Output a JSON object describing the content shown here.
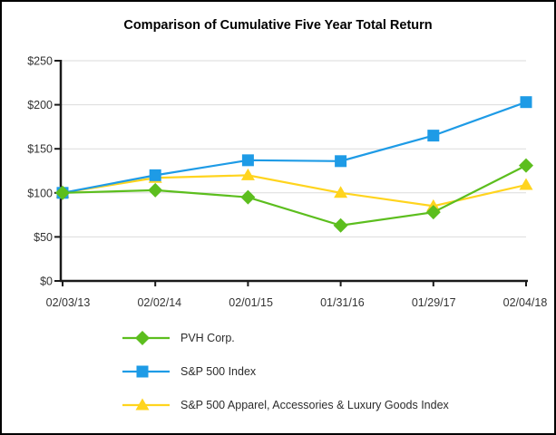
{
  "title": "Comparison of Cumulative Five Year Total Return",
  "chart_data": {
    "type": "line",
    "title": "Comparison of Cumulative Five Year Total Return",
    "categories": [
      "02/03/13",
      "02/02/14",
      "02/01/15",
      "01/31/16",
      "01/29/17",
      "02/04/18"
    ],
    "series": [
      {
        "name": "PVH Corp.",
        "marker": "diamond",
        "color": "#5CBE1E",
        "values": [
          100,
          103,
          95,
          63,
          78,
          131
        ]
      },
      {
        "name": "S&P 500 Index",
        "marker": "square",
        "color": "#1E9BE6",
        "values": [
          100,
          120,
          137,
          136,
          165,
          203
        ]
      },
      {
        "name": "S&P 500 Apparel, Accessories & Luxury Goods Index",
        "marker": "triangle",
        "color": "#FFD41E",
        "values": [
          100,
          117,
          120,
          100,
          85,
          109
        ]
      }
    ],
    "xlabel": "",
    "ylabel": "",
    "ylim": [
      0,
      250
    ],
    "ytick_step": 50,
    "ytick_labels": [
      "$0",
      "$50",
      "$100",
      "$150",
      "$200",
      "$250"
    ],
    "grid": true,
    "legend_position": "bottom-left",
    "colors": {
      "axis": "#1a1a1a",
      "gridline": "#dbdbdb",
      "tick_text": "#333333",
      "background": "#ffffff",
      "border": "#000000"
    }
  }
}
